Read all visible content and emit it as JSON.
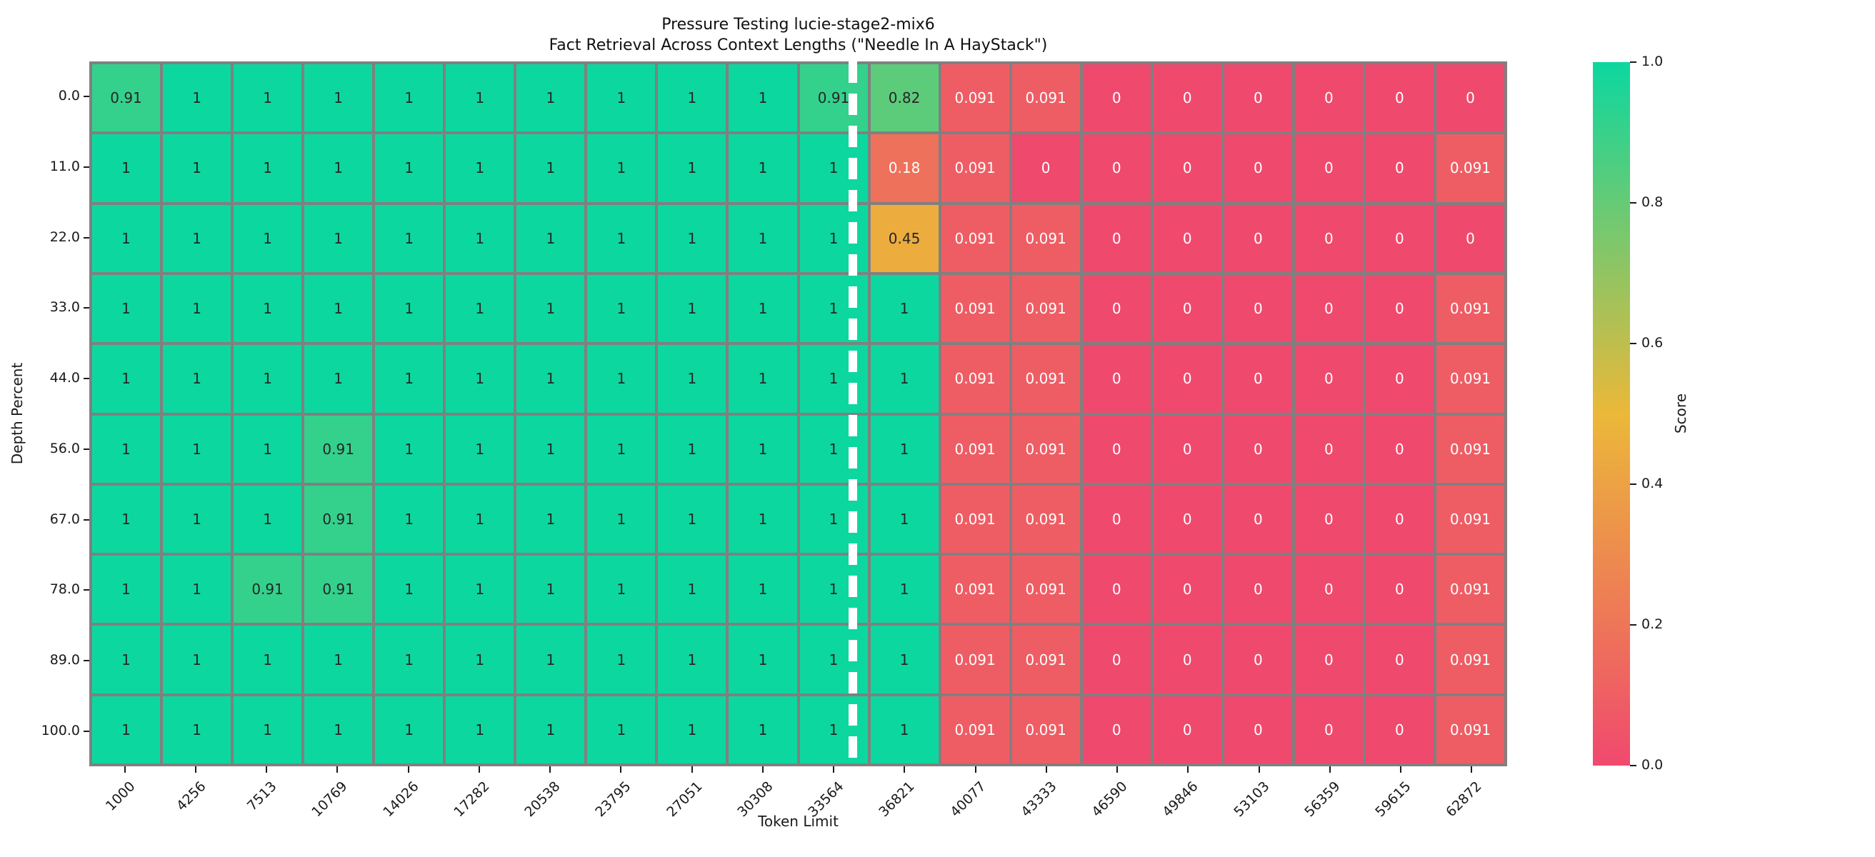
{
  "chart_data": {
    "type": "heatmap",
    "title_line1": "Pressure Testing lucie-stage2-mix6",
    "title_line2": "Fact Retrieval Across Context Lengths (\"Needle In A HayStack\")",
    "xlabel": "Token Limit",
    "ylabel": "Depth Percent",
    "x_categories": [
      "1000",
      "4256",
      "7513",
      "10769",
      "14026",
      "17282",
      "20538",
      "23795",
      "27051",
      "30308",
      "33564",
      "36821",
      "40077",
      "43333",
      "46590",
      "49846",
      "53103",
      "56359",
      "59615",
      "62872"
    ],
    "y_categories": [
      "0.0",
      "11.0",
      "22.0",
      "33.0",
      "44.0",
      "56.0",
      "67.0",
      "78.0",
      "89.0",
      "100.0"
    ],
    "values": [
      [
        0.91,
        1,
        1,
        1,
        1,
        1,
        1,
        1,
        1,
        1,
        0.91,
        0.82,
        0.091,
        0.091,
        0,
        0,
        0,
        0,
        0,
        0
      ],
      [
        1,
        1,
        1,
        1,
        1,
        1,
        1,
        1,
        1,
        1,
        1,
        0.18,
        0.091,
        0,
        0,
        0,
        0,
        0,
        0,
        0.091
      ],
      [
        1,
        1,
        1,
        1,
        1,
        1,
        1,
        1,
        1,
        1,
        1,
        0.45,
        0.091,
        0.091,
        0,
        0,
        0,
        0,
        0,
        0
      ],
      [
        1,
        1,
        1,
        1,
        1,
        1,
        1,
        1,
        1,
        1,
        1,
        1,
        0.091,
        0.091,
        0,
        0,
        0,
        0,
        0,
        0.091
      ],
      [
        1,
        1,
        1,
        1,
        1,
        1,
        1,
        1,
        1,
        1,
        1,
        1,
        0.091,
        0.091,
        0,
        0,
        0,
        0,
        0,
        0.091
      ],
      [
        1,
        1,
        1,
        0.91,
        1,
        1,
        1,
        1,
        1,
        1,
        1,
        1,
        0.091,
        0.091,
        0,
        0,
        0,
        0,
        0,
        0.091
      ],
      [
        1,
        1,
        1,
        0.91,
        1,
        1,
        1,
        1,
        1,
        1,
        1,
        1,
        0.091,
        0.091,
        0,
        0,
        0,
        0,
        0,
        0.091
      ],
      [
        1,
        1,
        0.91,
        0.91,
        1,
        1,
        1,
        1,
        1,
        1,
        1,
        1,
        0.091,
        0.091,
        0,
        0,
        0,
        0,
        0,
        0.091
      ],
      [
        1,
        1,
        1,
        1,
        1,
        1,
        1,
        1,
        1,
        1,
        1,
        1,
        0.091,
        0.091,
        0,
        0,
        0,
        0,
        0,
        0.091
      ],
      [
        1,
        1,
        1,
        1,
        1,
        1,
        1,
        1,
        1,
        1,
        1,
        1,
        0.091,
        0.091,
        0,
        0,
        0,
        0,
        0,
        0.091
      ]
    ],
    "annotated": true,
    "grid_line_color": "#808080",
    "divider": {
      "description": "white dashed vertical line",
      "between_x_labels": [
        "33564",
        "36821"
      ]
    },
    "colorbar": {
      "label": "Score",
      "ticks": [
        "1.0",
        "0.8",
        "0.6",
        "0.4",
        "0.2",
        "0.0"
      ],
      "range": [
        0.0,
        1.0
      ],
      "colormap_stops": [
        {
          "pos": 0.0,
          "color": "#F0496E"
        },
        {
          "pos": 0.5,
          "color": "#EBB839"
        },
        {
          "pos": 1.0,
          "color": "#0CD79F"
        }
      ]
    },
    "cell_colors_reference": {
      "1": "#0CD79F",
      "0.91": "#34D18D",
      "0.82": "#5CCB7A",
      "0.45": "#EBAD3E",
      "0.18": "#EE715B",
      "0.091": "#EF5D64",
      "0": "#F0496E"
    },
    "annotation_text_dark": "#262626",
    "annotation_text_light": "#ffffff"
  }
}
